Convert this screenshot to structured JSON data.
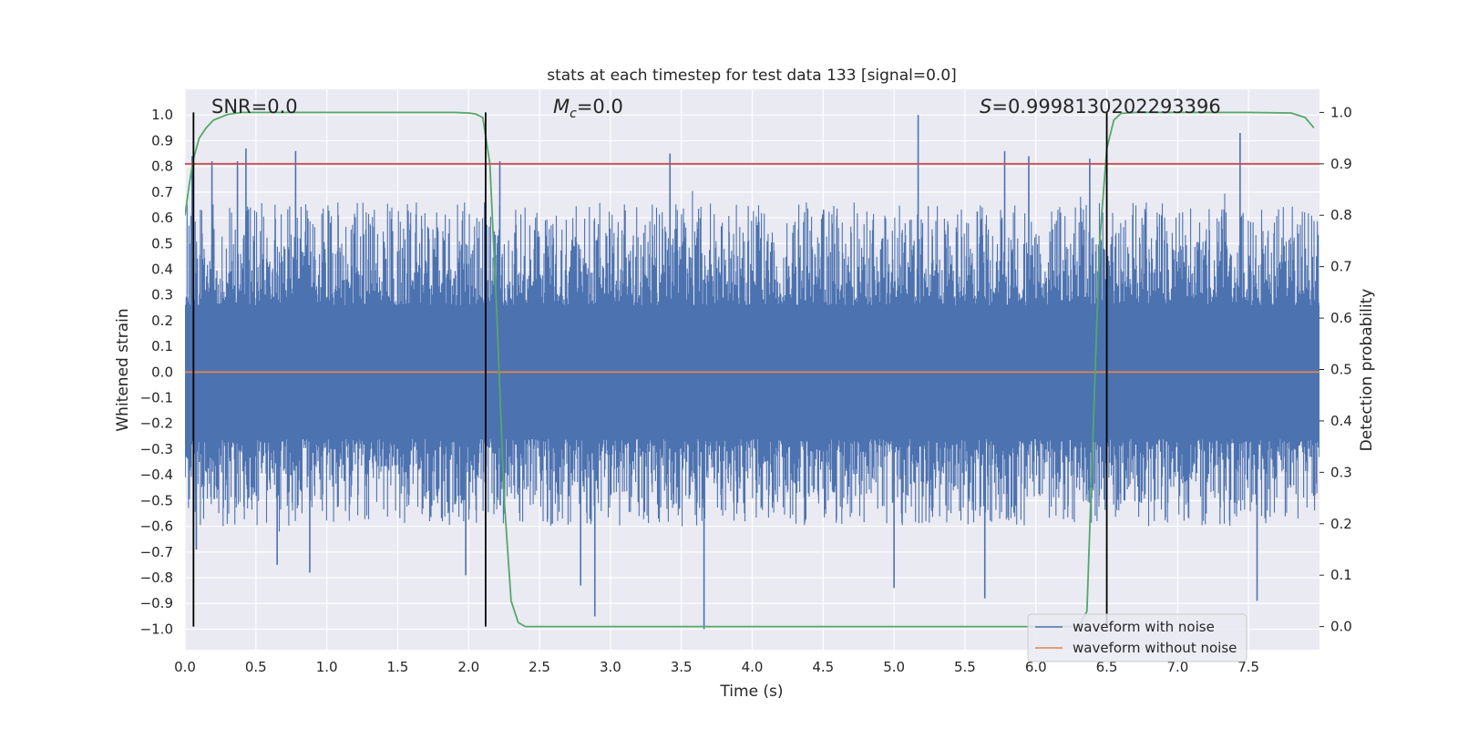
{
  "chart_data": {
    "type": "line",
    "title": "stats at each timestep for test data 133 [signal=0.0]",
    "xlabel": "Time (s)",
    "ylabel": "Whitened strain",
    "y2label": "Detection probability",
    "xlim": [
      0.0,
      8.0
    ],
    "ylim": [
      -1.08,
      1.1
    ],
    "y2lim": [
      -0.045,
      1.045
    ],
    "x_ticks": [
      "0.0",
      "0.5",
      "1.0",
      "1.5",
      "2.0",
      "2.5",
      "3.0",
      "3.5",
      "4.0",
      "4.5",
      "5.0",
      "5.5",
      "6.0",
      "6.5",
      "7.0",
      "7.5"
    ],
    "y_ticks": [
      "1.0",
      "0.9",
      "0.8",
      "0.7",
      "0.6",
      "0.5",
      "0.4",
      "0.3",
      "0.2",
      "0.1",
      "0.0",
      "-0.1",
      "-0.2",
      "-0.3",
      "-0.4",
      "-0.5",
      "-0.6",
      "-0.7",
      "-0.8",
      "-0.9",
      "-1.0"
    ],
    "y2_ticks": [
      "1.0",
      "0.9",
      "0.8",
      "0.7",
      "0.6",
      "0.5",
      "0.4",
      "0.3",
      "0.2",
      "0.1",
      "0.0"
    ],
    "grid": true,
    "annotations": {
      "snr": "SNR=0.0",
      "mc_symbol": "M",
      "mc_sub": "c",
      "mc_value": "=0.0",
      "s_symbol": "S",
      "s_value": "=0.9998130202293396"
    },
    "legend": {
      "placement": "lower-right",
      "entries": [
        "waveform with noise",
        "waveform without noise"
      ]
    },
    "series": [
      {
        "name": "waveform with noise",
        "color": "#4c72b0",
        "axis": "left",
        "peaks": [
          {
            "x": 0.05,
            "y": 0.84
          },
          {
            "x": 0.19,
            "y": 0.82
          },
          {
            "x": 0.37,
            "y": 0.82
          },
          {
            "x": 0.43,
            "y": 0.87
          },
          {
            "x": 0.78,
            "y": 0.86
          },
          {
            "x": 2.22,
            "y": 0.82
          },
          {
            "x": 3.42,
            "y": 0.85
          },
          {
            "x": 5.17,
            "y": 1.0
          },
          {
            "x": 5.78,
            "y": 0.86
          },
          {
            "x": 5.95,
            "y": 0.84
          },
          {
            "x": 6.38,
            "y": 0.83
          },
          {
            "x": 7.44,
            "y": 0.93
          },
          {
            "x": 0.08,
            "y": -0.69
          },
          {
            "x": 0.65,
            "y": -0.75
          },
          {
            "x": 0.88,
            "y": -0.78
          },
          {
            "x": 1.98,
            "y": -0.79
          },
          {
            "x": 2.25,
            "y": -0.55
          },
          {
            "x": 2.79,
            "y": -0.83
          },
          {
            "x": 2.89,
            "y": -0.95
          },
          {
            "x": 3.66,
            "y": -1.0
          },
          {
            "x": 5.0,
            "y": -0.84
          },
          {
            "x": 5.64,
            "y": -0.88
          },
          {
            "x": 7.56,
            "y": -0.89
          }
        ]
      },
      {
        "name": "waveform without noise",
        "color": "#dd8452",
        "axis": "left",
        "x": [
          0.0,
          8.0
        ],
        "y": [
          0.0,
          0.0
        ]
      },
      {
        "name": "Detection probability",
        "color": "#55a868",
        "axis": "right",
        "x": [
          0.0,
          0.03,
          0.06,
          0.1,
          0.15,
          0.2,
          0.3,
          0.4,
          0.6,
          1.0,
          1.5,
          1.9,
          2.0,
          2.05,
          2.1,
          2.15,
          2.2,
          2.25,
          2.3,
          2.35,
          2.4,
          2.5,
          3.0,
          4.0,
          5.0,
          6.0,
          6.3,
          6.36,
          6.4,
          6.45,
          6.5,
          6.55,
          6.6,
          6.7,
          7.0,
          7.5,
          7.8,
          7.9,
          7.96
        ],
        "y": [
          0.8,
          0.86,
          0.91,
          0.95,
          0.97,
          0.985,
          0.996,
          1.0,
          1.0,
          1.0,
          1.0,
          1.0,
          0.999,
          0.997,
          0.99,
          0.9,
          0.6,
          0.25,
          0.05,
          0.008,
          0.0,
          0.0,
          0.0,
          0.0,
          0.0,
          0.0,
          0.0,
          0.03,
          0.35,
          0.75,
          0.93,
          0.985,
          0.998,
          1.0,
          1.0,
          1.0,
          0.999,
          0.99,
          0.97
        ]
      },
      {
        "name": "threshold",
        "color": "#c44e52",
        "axis": "right",
        "x": [
          0.0,
          8.0
        ],
        "y": [
          0.9,
          0.9
        ]
      }
    ],
    "vertical_markers": [
      0.06,
      2.12,
      6.5
    ]
  }
}
